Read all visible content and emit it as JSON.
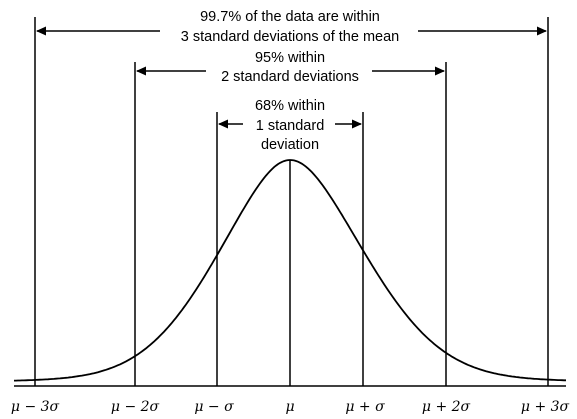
{
  "annotations": {
    "three_sigma_line1": "99.7% of the data are within",
    "three_sigma_line2": "3 standard deviations of the mean",
    "two_sigma_line1": "95% within",
    "two_sigma_line2": "2 standard deviations",
    "one_sigma_line1": "68% within",
    "one_sigma_line2": "1 standard",
    "one_sigma_line3": "deviation"
  },
  "axis_labels": {
    "minus3": "μ − 3σ",
    "minus2": "μ − 2σ",
    "minus1": "μ − σ",
    "mean": "μ",
    "plus1": "μ + σ",
    "plus2": "μ + 2σ",
    "plus3": "μ + 3σ"
  },
  "colors": {
    "ink": "#000000",
    "background": "#ffffff"
  }
}
